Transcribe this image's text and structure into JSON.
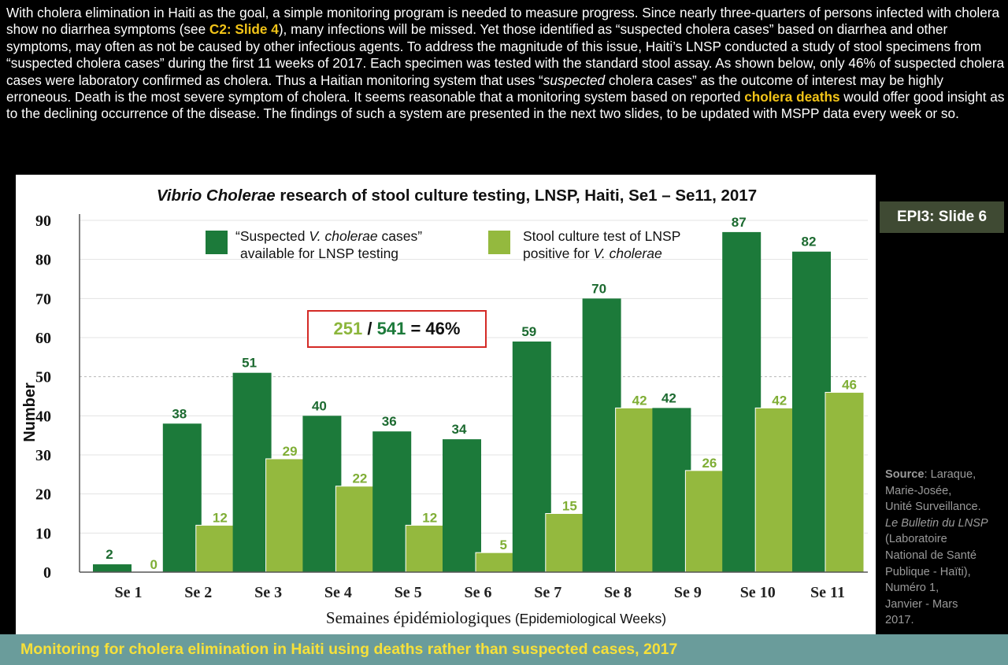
{
  "intro": {
    "t1": "With cholera elimination in Haiti as the goal, a simple monitoring program is needed to measure progress. Since nearly three-quarters of persons infected with cholera show no diarrhea symptoms (see ",
    "link": "C2: Slide 4",
    "t2": "), many infections will be missed. Yet those identified as “suspected cholera cases” based on diarrhea and other symptoms, may often as not be caused by other infectious agents. To address the magnitude of this issue, Haiti’s LNSP conducted a study of stool specimens from “suspected cholera cases” during the first 11 weeks of 2017. Each specimen was tested with the standard stool assay. As shown below, only 46% of suspected cholera cases were laboratory confirmed as cholera. Thus a Haitian monitoring system that uses “",
    "t2_em": "suspected",
    "t3": " cholera cases” as the outcome of interest may be highly erroneous. Death is the most severe symptom of cholera. It seems reasonable that a monitoring system based on reported ",
    "highlight": "cholera deaths",
    "t4": " would offer good insight  as to the declining occurrence of the disease. The findings of such a system are presented in the next two slides, to be updated with MSPP data every week or so."
  },
  "slide_tag": "EPI3: Slide 6",
  "source": {
    "label": "Source",
    "line1": ": Laraque,",
    "line2": "Marie-Josée,",
    "line3": "Unité Surveillance.",
    "line4": "Le Bulletin du LNSP",
    "line5": "(Laboratoire",
    "line6": "National de Santé",
    "line7": "Publique - Haïti),",
    "line8": "Numéro 1,",
    "line9": "Janvier - Mars",
    "line10": "2017."
  },
  "footer": "Monitoring for cholera elimination in Haiti using deaths rather than suspected cases, 2017",
  "ratio": {
    "positive": "251",
    "sep": " / ",
    "suspected": "541",
    "rest": " = 46%"
  },
  "chart_data": {
    "type": "bar",
    "title_italic": "Vibrio Cholerae",
    "title_rest": " research of stool culture testing, LNSP, Haiti, Se1 – Se11, 2017",
    "categories": [
      "Se 1",
      "Se 2",
      "Se 3",
      "Se 4",
      "Se 5",
      "Se 6",
      "Se 7",
      "Se 8",
      "Se 9",
      "Se 10",
      "Se 11"
    ],
    "series": [
      {
        "name": "“Suspected V. cholerae cases” available for LNSP testing",
        "legend_line1_a": "“Suspected ",
        "legend_line1_em": "V. cholerae",
        "legend_line1_b": " cases”",
        "legend_line2": "available for LNSP testing",
        "color": "#1c7a3a",
        "values": [
          2,
          38,
          51,
          40,
          36,
          34,
          59,
          70,
          42,
          87,
          82
        ]
      },
      {
        "name": "Stool culture test of LNSP positive for V. cholerae",
        "legend_line1": "Stool culture test of LNSP",
        "legend_line2_a": "positive for ",
        "legend_line2_em": "V. cholerae",
        "color": "#94b93e",
        "values": [
          0,
          12,
          29,
          22,
          12,
          5,
          15,
          42,
          26,
          42,
          46
        ]
      }
    ],
    "ylabel": "Number",
    "xlabel": "Semaines épidémiologiques",
    "xlabel_suffix": " (Epidemiological Weeks)",
    "ylim": [
      0,
      90
    ],
    "yticks": [
      0,
      10,
      20,
      30,
      40,
      50,
      60,
      70,
      80,
      90
    ],
    "grid": true,
    "highlight_gridline": 50,
    "label_colors": {
      "suspected": "#1c6a30",
      "positive": "#7fae35"
    }
  }
}
